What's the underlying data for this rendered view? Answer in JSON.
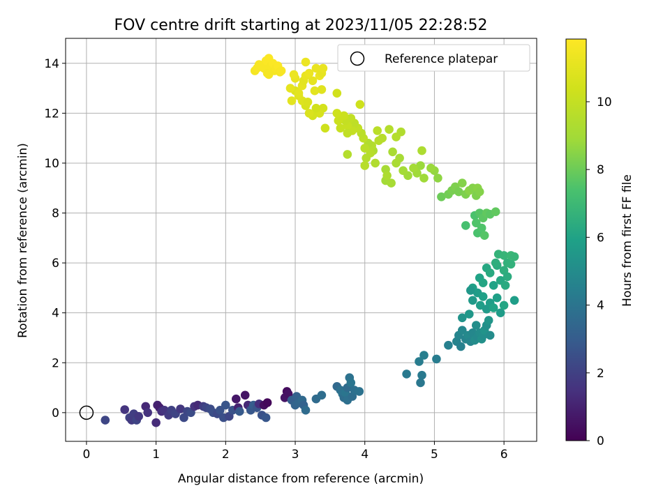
{
  "chart_data": {
    "type": "scatter",
    "title": "FOV centre drift starting at 2023/11/05 22:28:52",
    "xlabel": "Angular distance from reference (arcmin)",
    "ylabel": "Rotation from reference (arcmin)",
    "xlim": [
      -0.3,
      6.47
    ],
    "ylim": [
      -1.15,
      15
    ],
    "xticks": [
      0,
      1,
      2,
      3,
      4,
      5,
      6
    ],
    "yticks": [
      0,
      2,
      4,
      6,
      8,
      10,
      12,
      14
    ],
    "grid": true,
    "legend": {
      "position": "top-right",
      "entries": [
        "Reference platepar"
      ]
    },
    "reference_point": {
      "x": 0,
      "y": 0,
      "marker": "open-circle"
    },
    "colorbar": {
      "label": "Hours from first FF file",
      "range": [
        0,
        11.85
      ],
      "ticks": [
        0,
        2,
        4,
        6,
        8,
        10
      ],
      "colormap": "viridis"
    },
    "series": [
      {
        "color_encodes": "hours",
        "points": [
          [
            0.27,
            -0.3,
            2.2
          ],
          [
            0.55,
            0.12,
            1.6
          ],
          [
            0.62,
            -0.2,
            2.0
          ],
          [
            0.65,
            -0.3,
            1.8
          ],
          [
            0.68,
            -0.05,
            1.9
          ],
          [
            0.72,
            -0.3,
            2.1
          ],
          [
            0.75,
            -0.15,
            1.7
          ],
          [
            0.85,
            0.25,
            1.2
          ],
          [
            0.88,
            0.0,
            1.5
          ],
          [
            1.0,
            -0.4,
            1.3
          ],
          [
            1.02,
            0.3,
            1.0
          ],
          [
            1.05,
            0.2,
            0.9
          ],
          [
            1.08,
            0.05,
            1.4
          ],
          [
            1.12,
            0.1,
            1.6
          ],
          [
            1.18,
            -0.1,
            1.8
          ],
          [
            1.22,
            0.1,
            2.0
          ],
          [
            1.28,
            -0.05,
            2.1
          ],
          [
            1.35,
            0.15,
            1.7
          ],
          [
            1.4,
            -0.2,
            2.3
          ],
          [
            1.45,
            0.05,
            2.2
          ],
          [
            1.5,
            0.0,
            2.4
          ],
          [
            1.55,
            0.25,
            1.5
          ],
          [
            1.6,
            0.3,
            1.2
          ],
          [
            1.68,
            0.25,
            1.9
          ],
          [
            1.72,
            0.2,
            2.2
          ],
          [
            1.78,
            0.15,
            2.4
          ],
          [
            1.82,
            0.0,
            2.5
          ],
          [
            1.88,
            -0.05,
            2.3
          ],
          [
            1.92,
            0.1,
            2.6
          ],
          [
            1.97,
            -0.2,
            2.5
          ],
          [
            2.0,
            0.3,
            2.7
          ],
          [
            2.05,
            -0.15,
            2.2
          ],
          [
            2.1,
            0.1,
            2.6
          ],
          [
            2.15,
            0.55,
            0.7
          ],
          [
            2.18,
            0.2,
            1.0
          ],
          [
            2.2,
            0.05,
            2.9
          ],
          [
            2.28,
            0.7,
            0.6
          ],
          [
            2.32,
            0.3,
            1.2
          ],
          [
            2.36,
            0.1,
            2.8
          ],
          [
            2.4,
            0.3,
            3.0
          ],
          [
            2.45,
            0.2,
            2.7
          ],
          [
            2.48,
            0.35,
            1.4
          ],
          [
            2.52,
            -0.1,
            2.6
          ],
          [
            2.55,
            0.3,
            0.4
          ],
          [
            2.58,
            -0.2,
            2.8
          ],
          [
            2.6,
            0.4,
            0.2
          ],
          [
            2.85,
            0.6,
            0.6
          ],
          [
            2.88,
            0.85,
            0.3
          ],
          [
            2.9,
            0.75,
            0.5
          ],
          [
            2.95,
            0.5,
            3.1
          ],
          [
            3.0,
            0.3,
            3.3
          ],
          [
            3.02,
            0.65,
            3.2
          ],
          [
            3.05,
            0.4,
            3.4
          ],
          [
            3.1,
            0.5,
            3.5
          ],
          [
            3.12,
            0.3,
            3.2
          ],
          [
            3.15,
            0.1,
            3.6
          ],
          [
            3.3,
            0.55,
            3.6
          ],
          [
            3.38,
            0.7,
            3.7
          ],
          [
            3.6,
            1.05,
            3.5
          ],
          [
            3.65,
            0.9,
            3.8
          ],
          [
            3.68,
            0.75,
            3.9
          ],
          [
            3.7,
            0.6,
            3.7
          ],
          [
            3.72,
            0.8,
            4.0
          ],
          [
            3.75,
            1.0,
            3.6
          ],
          [
            3.75,
            0.5,
            3.8
          ],
          [
            3.78,
            1.4,
            3.9
          ],
          [
            3.8,
            1.2,
            4.0
          ],
          [
            3.82,
            0.65,
            3.7
          ],
          [
            3.85,
            0.9,
            3.8
          ],
          [
            3.92,
            0.85,
            3.9
          ],
          [
            4.6,
            1.55,
            4.2
          ],
          [
            4.78,
            2.05,
            4.3
          ],
          [
            4.8,
            1.2,
            4.1
          ],
          [
            4.85,
            2.3,
            4.4
          ],
          [
            4.82,
            1.5,
            4.2
          ],
          [
            5.03,
            2.15,
            4.3
          ],
          [
            5.2,
            2.7,
            4.5
          ],
          [
            5.32,
            2.85,
            4.6
          ],
          [
            5.35,
            3.1,
            4.7
          ],
          [
            5.38,
            2.65,
            4.5
          ],
          [
            5.4,
            3.3,
            4.8
          ],
          [
            5.45,
            2.95,
            4.6
          ],
          [
            5.48,
            3.1,
            4.9
          ],
          [
            5.52,
            2.85,
            4.7
          ],
          [
            5.55,
            3.2,
            4.8
          ],
          [
            5.58,
            2.9,
            5.0
          ],
          [
            5.6,
            3.5,
            5.1
          ],
          [
            5.62,
            3.05,
            4.9
          ],
          [
            5.65,
            3.2,
            5.0
          ],
          [
            5.68,
            2.95,
            5.2
          ],
          [
            5.7,
            3.1,
            5.1
          ],
          [
            5.72,
            3.3,
            5.3
          ],
          [
            5.75,
            3.5,
            5.2
          ],
          [
            5.78,
            3.7,
            5.4
          ],
          [
            5.8,
            3.1,
            5.0
          ],
          [
            5.4,
            3.8,
            5.3
          ],
          [
            5.5,
            3.95,
            5.5
          ],
          [
            5.55,
            4.5,
            5.6
          ],
          [
            5.62,
            4.8,
            5.7
          ],
          [
            5.66,
            4.3,
            5.8
          ],
          [
            5.7,
            4.65,
            5.9
          ],
          [
            5.75,
            4.15,
            5.6
          ],
          [
            5.8,
            4.4,
            5.8
          ],
          [
            5.85,
            4.2,
            6.0
          ],
          [
            5.9,
            4.6,
            5.9
          ],
          [
            5.95,
            4.0,
            5.7
          ],
          [
            6.0,
            4.3,
            6.1
          ],
          [
            5.55,
            5.0,
            5.9
          ],
          [
            5.65,
            5.4,
            6.0
          ],
          [
            5.7,
            5.2,
            6.1
          ],
          [
            5.75,
            5.8,
            6.2
          ],
          [
            5.8,
            5.6,
            6.3
          ],
          [
            5.85,
            5.1,
            6.0
          ],
          [
            5.9,
            5.9,
            6.4
          ],
          [
            5.95,
            5.3,
            6.2
          ],
          [
            6.0,
            5.7,
            6.5
          ],
          [
            6.02,
            5.1,
            6.3
          ],
          [
            6.05,
            5.45,
            6.4
          ],
          [
            6.1,
            5.95,
            6.6
          ],
          [
            5.88,
            6.0,
            6.5
          ],
          [
            5.92,
            6.35,
            6.7
          ],
          [
            6.0,
            6.3,
            6.8
          ],
          [
            6.05,
            6.0,
            6.6
          ],
          [
            6.1,
            6.3,
            6.9
          ],
          [
            6.15,
            6.25,
            6.8
          ],
          [
            6.15,
            4.5,
            5.8
          ],
          [
            5.52,
            4.9,
            5.5
          ],
          [
            5.45,
            7.5,
            7.3
          ],
          [
            5.58,
            7.9,
            7.4
          ],
          [
            5.6,
            7.6,
            7.5
          ],
          [
            5.62,
            7.2,
            7.4
          ],
          [
            5.65,
            8.0,
            7.6
          ],
          [
            5.68,
            7.4,
            7.5
          ],
          [
            5.7,
            7.8,
            7.7
          ],
          [
            5.72,
            7.1,
            7.6
          ],
          [
            5.75,
            8.0,
            7.8
          ],
          [
            5.8,
            7.95,
            7.7
          ],
          [
            5.88,
            8.05,
            7.8
          ],
          [
            5.1,
            8.65,
            8.0
          ],
          [
            5.2,
            8.75,
            8.1
          ],
          [
            5.25,
            8.9,
            8.2
          ],
          [
            5.3,
            9.05,
            8.3
          ],
          [
            5.35,
            8.85,
            8.2
          ],
          [
            5.4,
            9.2,
            8.4
          ],
          [
            5.45,
            8.75,
            8.3
          ],
          [
            5.5,
            8.9,
            8.5
          ],
          [
            5.55,
            9.0,
            8.4
          ],
          [
            5.6,
            8.7,
            8.3
          ],
          [
            5.62,
            9.0,
            8.5
          ],
          [
            5.65,
            8.85,
            8.4
          ],
          [
            5.05,
            9.4,
            8.6
          ],
          [
            5.0,
            9.7,
            8.7
          ],
          [
            4.95,
            9.8,
            8.8
          ],
          [
            4.85,
            9.4,
            8.9
          ],
          [
            4.8,
            9.9,
            8.8
          ],
          [
            4.75,
            9.6,
            8.9
          ],
          [
            4.7,
            9.8,
            9.0
          ],
          [
            4.62,
            9.5,
            8.9
          ],
          [
            4.55,
            9.7,
            9.0
          ],
          [
            4.5,
            10.2,
            9.1
          ],
          [
            4.45,
            10.0,
            9.2
          ],
          [
            4.4,
            10.45,
            9.2
          ],
          [
            4.3,
            9.75,
            9.1
          ],
          [
            4.3,
            9.3,
            9.0
          ],
          [
            4.32,
            9.5,
            9.3
          ],
          [
            4.38,
            9.2,
            9.1
          ],
          [
            4.82,
            10.5,
            9.3
          ],
          [
            4.15,
            10.0,
            9.4
          ],
          [
            4.12,
            10.5,
            9.3
          ],
          [
            4.1,
            10.7,
            9.5
          ],
          [
            4.08,
            10.4,
            9.6
          ],
          [
            4.05,
            10.8,
            9.4
          ],
          [
            4.02,
            10.2,
            9.5
          ],
          [
            4.0,
            10.6,
            9.7
          ],
          [
            4.0,
            9.9,
            9.6
          ],
          [
            3.98,
            11.0,
            9.8
          ],
          [
            3.95,
            11.2,
            9.7
          ],
          [
            3.9,
            11.4,
            9.9
          ],
          [
            3.85,
            11.6,
            9.8
          ],
          [
            3.82,
            11.3,
            10.0
          ],
          [
            3.8,
            11.8,
            9.9
          ],
          [
            3.75,
            11.5,
            10.1
          ],
          [
            3.72,
            11.7,
            10.0
          ],
          [
            3.7,
            11.9,
            10.2
          ],
          [
            3.65,
            11.4,
            10.1
          ],
          [
            3.62,
            11.7,
            10.2
          ],
          [
            3.6,
            12.0,
            10.3
          ],
          [
            3.6,
            12.8,
            10.4
          ],
          [
            3.75,
            10.35,
            9.5
          ],
          [
            3.75,
            11.2,
            9.9
          ],
          [
            3.93,
            12.35,
            10.3
          ],
          [
            4.18,
            11.3,
            9.7
          ],
          [
            4.2,
            10.9,
            9.6
          ],
          [
            4.25,
            11.0,
            9.6
          ],
          [
            4.35,
            11.35,
            9.5
          ],
          [
            4.52,
            11.25,
            9.4
          ],
          [
            4.45,
            11.05,
            9.5
          ],
          [
            3.43,
            11.4,
            10.3
          ],
          [
            3.4,
            12.2,
            10.5
          ],
          [
            3.35,
            12.0,
            10.6
          ],
          [
            3.3,
            12.2,
            10.4
          ],
          [
            3.25,
            11.9,
            10.5
          ],
          [
            3.2,
            12.0,
            10.7
          ],
          [
            3.15,
            12.3,
            10.6
          ],
          [
            3.1,
            12.5,
            10.8
          ],
          [
            3.05,
            12.7,
            10.9
          ],
          [
            3.0,
            12.9,
            10.8
          ],
          [
            2.95,
            12.5,
            11.0
          ],
          [
            2.93,
            13.0,
            11.1
          ],
          [
            3.0,
            13.4,
            11.2
          ],
          [
            3.05,
            12.8,
            11.0
          ],
          [
            3.1,
            13.1,
            11.1
          ],
          [
            3.12,
            13.3,
            11.0
          ],
          [
            3.15,
            13.5,
            11.2
          ],
          [
            3.2,
            13.6,
            11.3
          ],
          [
            3.25,
            13.3,
            11.1
          ],
          [
            3.28,
            12.9,
            11.0
          ],
          [
            3.3,
            13.8,
            11.2
          ],
          [
            3.35,
            13.5,
            11.3
          ],
          [
            3.38,
            13.6,
            11.1
          ],
          [
            3.4,
            13.8,
            11.2
          ],
          [
            3.15,
            14.05,
            11.3
          ],
          [
            2.98,
            13.55,
            11.3
          ],
          [
            3.18,
            12.45,
            10.7
          ],
          [
            3.38,
            12.95,
            10.9
          ],
          [
            2.42,
            13.7,
            11.6
          ],
          [
            2.45,
            13.8,
            11.7
          ],
          [
            2.5,
            13.9,
            11.6
          ],
          [
            2.55,
            13.8,
            11.7
          ],
          [
            2.58,
            14.1,
            11.8
          ],
          [
            2.6,
            13.6,
            11.6
          ],
          [
            2.62,
            14.2,
            11.8
          ],
          [
            2.65,
            13.9,
            11.7
          ],
          [
            2.68,
            14.0,
            11.8
          ],
          [
            2.7,
            13.7,
            11.6
          ],
          [
            2.72,
            13.8,
            11.7
          ],
          [
            2.75,
            13.9,
            11.8
          ],
          [
            2.78,
            13.65,
            11.6
          ],
          [
            2.48,
            13.95,
            11.7
          ],
          [
            2.62,
            13.55,
            11.6
          ],
          [
            2.8,
            13.7,
            11.7
          ]
        ]
      }
    ]
  }
}
